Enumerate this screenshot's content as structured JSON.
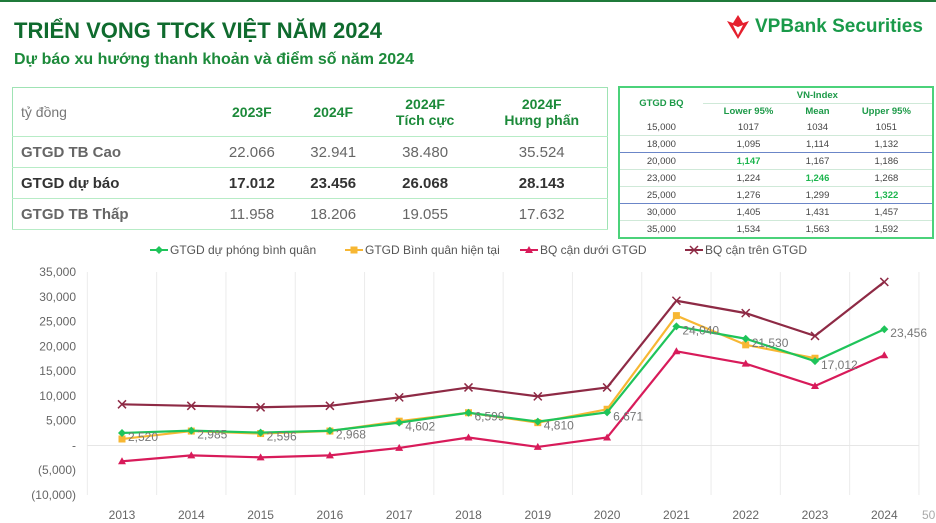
{
  "header": {
    "title": "TRIỂN VỌNG TTCK VIỆT NĂM 2024",
    "subtitle": "Dự báo xu hướng thanh khoản và điểm số năm 2024",
    "logo_text": "VPBank Securities"
  },
  "forecast_table": {
    "unit": "tỷ đồng",
    "columns": [
      [
        "2023F",
        ""
      ],
      [
        "2024F",
        ""
      ],
      [
        "2024F",
        "Tích cực"
      ],
      [
        "2024F",
        "Hưng phấn"
      ]
    ],
    "rows": [
      {
        "label": "GTGD TB Cao",
        "values": [
          "22.066",
          "32.941",
          "38.480",
          "35.524"
        ]
      },
      {
        "label": "GTGD dự báo",
        "values": [
          "17.012",
          "23.456",
          "26.068",
          "28.143"
        ]
      },
      {
        "label": "GTGD TB Thấp",
        "values": [
          "11.958",
          "18.206",
          "19.055",
          "17.632"
        ]
      }
    ]
  },
  "vnindex_table": {
    "row_header": "GTGD BQ",
    "group_header": "VN-Index",
    "columns": [
      "Lower 95%",
      "Mean",
      "Upper 95%"
    ],
    "rows": [
      [
        "15,000",
        "1017",
        "1034",
        "1051"
      ],
      [
        "18,000",
        "1,095",
        "1,114",
        "1,132"
      ],
      [
        "20,000",
        "1,147",
        "1,167",
        "1,186"
      ],
      [
        "23,000",
        "1,224",
        "1,246",
        "1,268"
      ],
      [
        "25,000",
        "1,276",
        "1,299",
        "1,322"
      ],
      [
        "30,000",
        "1,405",
        "1,431",
        "1,457"
      ],
      [
        "35,000",
        "1,534",
        "1,563",
        "1,592"
      ]
    ],
    "highlight_color": "#1db64f"
  },
  "chart_data": {
    "type": "line",
    "categories": [
      "2013",
      "2014",
      "2015",
      "2016",
      "2017",
      "2018",
      "2019",
      "2020",
      "2021",
      "2022",
      "2023",
      "2024"
    ],
    "extra_tick_label": "50",
    "ylim": [
      -10000,
      35000
    ],
    "yticks": [
      "35,000",
      "30,000",
      "25,000",
      "20,000",
      "15,000",
      "10,000",
      "5,000",
      "-",
      "(5,000)",
      "(10,000)"
    ],
    "grid": "vertical",
    "legend": "top",
    "series": [
      {
        "name": "GTGD dự phóng bình quân",
        "color": "#1fc45a",
        "marker": "diamond",
        "values": [
          2520,
          2985,
          2596,
          2968,
          4602,
          6599,
          4810,
          6671,
          24040,
          21530,
          17012,
          23456
        ],
        "labels": [
          "2,520",
          "2,985",
          "2,596",
          "2,968",
          "4,602",
          "6,599",
          "4,810",
          "6,671",
          "24,040",
          "21,530",
          "17,012",
          "23,456"
        ]
      },
      {
        "name": "GTGD Bình quân hiện tại",
        "color": "#f7b733",
        "marker": "square",
        "values": [
          1300,
          2900,
          2400,
          2900,
          4900,
          6600,
          4600,
          7300,
          26200,
          20300,
          17600,
          null
        ]
      },
      {
        "name": "BQ cận dưới GTGD",
        "color": "#d81b5a",
        "marker": "triangle",
        "values": [
          -3200,
          -2000,
          -2400,
          -2000,
          -500,
          1600,
          -300,
          1600,
          19000,
          16500,
          12000,
          18200
        ]
      },
      {
        "name": "BQ cận trên GTGD",
        "color": "#8e2a45",
        "marker": "x",
        "values": [
          8300,
          8000,
          7700,
          8000,
          9700,
          11700,
          9900,
          11700,
          29200,
          26700,
          22100,
          33000
        ]
      }
    ]
  }
}
